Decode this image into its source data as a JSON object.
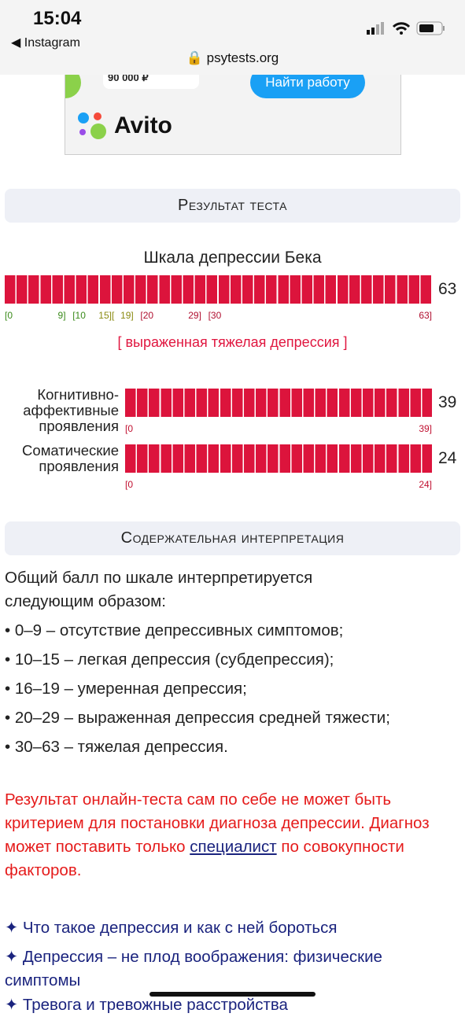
{
  "status_bar": {
    "time": "15:04",
    "back": "◀ Instagram",
    "url": "🔒 psytests.org"
  },
  "ad": {
    "price": "90 000 ₽",
    "button": "Найти работу",
    "brand": "Avito"
  },
  "result": {
    "header": "Результат теста",
    "scale": {
      "title": "Шкала депрессии Бека",
      "score": 63,
      "min": 0,
      "max": 63,
      "ticks": [
        {
          "value": 0,
          "label": "[0"
        },
        {
          "value": 9,
          "label": "9]"
        },
        {
          "value": 10,
          "label": "[10"
        },
        {
          "value": 15,
          "label": "15]["
        },
        {
          "value": 19,
          "label": "19]"
        },
        {
          "value": 20,
          "label": "[20"
        },
        {
          "value": 29,
          "label": "29]"
        },
        {
          "value": 30,
          "label": "[30"
        },
        {
          "value": 63,
          "label": "63]"
        }
      ],
      "verdict": "[ выраженная тяжелая депрессия ]"
    },
    "subscales": [
      {
        "label": "Когнитивно-аффективные проявления",
        "score": 39,
        "min": 0,
        "max": 39,
        "ticks": [
          {
            "value": 0,
            "label": "[0"
          },
          {
            "value": 39,
            "label": "39]"
          }
        ]
      },
      {
        "label": "Соматические проявления",
        "score": 24,
        "min": 0,
        "max": 24,
        "ticks": [
          {
            "value": 0,
            "label": "[0"
          },
          {
            "value": 24,
            "label": "24]"
          }
        ]
      }
    ]
  },
  "interpretation": {
    "header": "Содержательная интерпретация",
    "intro": "Общий балл по шкале интерпретируется следующим образом:",
    "items": [
      "• 0–9 – отсутствие депрессивных симптомов;",
      "• 10–15 – легкая депрессия (субдепрессия);",
      "• 16–19 – умеренная депрессия;",
      "• 20–29 – выраженная депрессия средней тяжести;",
      "• 30–63 – тяжелая депрессия."
    ],
    "warning": {
      "before": "Результат онлайн-теста сам по себе не может быть критерием для постановки диагноза депрессии. Диагноз может поставить только ",
      "link": "специалист",
      "after": " по совокупности факторов."
    }
  },
  "links": [
    "✦ Что такое депрессия и как с ней бороться",
    "✦ Депрессия – не плод воображения: физические симптомы",
    "✦ Тревога и тревожные расстройства"
  ]
}
